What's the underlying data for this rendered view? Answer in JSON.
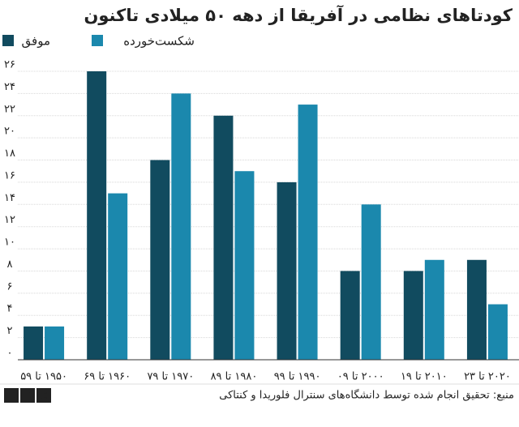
{
  "chart_data": {
    "type": "bar",
    "title": "کودتاهای نظامی در آفریقا از دهه ۵۰ میلادی تاکنون",
    "categories": [
      "۱۹۵۰ تا ۵۹",
      "۱۹۶۰ تا ۶۹",
      "۱۹۷۰ تا ۷۹",
      "۱۹۸۰ تا ۸۹",
      "۱۹۹۰ تا ۹۹",
      "۲۰۰۰ تا ۰۹",
      "۲۰۱۰ تا ۱۹",
      "۲۰۲۰ تا ۲۳"
    ],
    "series": [
      {
        "name": "موفق",
        "color": "#114b5f",
        "values": [
          3,
          26,
          18,
          22,
          16,
          8,
          8,
          9
        ]
      },
      {
        "name": "شکست‌خورده",
        "color": "#1b88ad",
        "values": [
          3,
          15,
          24,
          17,
          23,
          14,
          9,
          5
        ]
      }
    ],
    "ylim": [
      0,
      26
    ],
    "yticks": [
      {
        "value": 0,
        "label": "۰"
      },
      {
        "value": 2,
        "label": "۲"
      },
      {
        "value": 4,
        "label": "۴"
      },
      {
        "value": 6,
        "label": "۶"
      },
      {
        "value": 8,
        "label": "۸"
      },
      {
        "value": 10,
        "label": "۱۰"
      },
      {
        "value": 12,
        "label": "۱۲"
      },
      {
        "value": 14,
        "label": "۱۴"
      },
      {
        "value": 16,
        "label": "۱۶"
      },
      {
        "value": 18,
        "label": "۱۸"
      },
      {
        "value": 20,
        "label": "۲۰"
      },
      {
        "value": 22,
        "label": "۲۲"
      },
      {
        "value": 24,
        "label": "۲۴"
      },
      {
        "value": 26,
        "label": "۲۶"
      }
    ],
    "grid": true,
    "source": "منبع: تحقیق انجام شده توسط دانشگاه‌های سنترال فلوریدا و کنتاکی",
    "logo": [
      "B",
      "B",
      "C"
    ]
  }
}
